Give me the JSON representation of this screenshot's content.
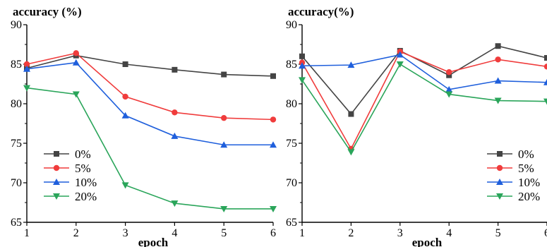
{
  "chart_data": [
    {
      "type": "line",
      "ylabel": "accuracy (%)",
      "xlabel": "epoch",
      "x": [
        1,
        2,
        3,
        4,
        5,
        6
      ],
      "xlim": [
        1,
        6
      ],
      "ylim": [
        65,
        90
      ],
      "xticks": [
        "1",
        "2",
        "3",
        "4",
        "5",
        "6"
      ],
      "yticks": [
        "65",
        "70",
        "75",
        "80",
        "85",
        "90"
      ],
      "legend_position": "bottom-left",
      "grid": false,
      "series": [
        {
          "name": "0%",
          "color": "#444444",
          "marker": "square",
          "values": [
            84.5,
            86.1,
            85.0,
            84.3,
            83.7,
            83.5
          ]
        },
        {
          "name": "5%",
          "color": "#f03c3c",
          "marker": "circle",
          "values": [
            85.0,
            86.4,
            80.9,
            78.9,
            78.2,
            78.0
          ]
        },
        {
          "name": "10%",
          "color": "#1f5fdc",
          "marker": "triangle-up",
          "values": [
            84.4,
            85.2,
            78.5,
            75.9,
            74.8,
            74.8
          ]
        },
        {
          "name": "20%",
          "color": "#2aa55a",
          "marker": "triangle-down",
          "values": [
            82.0,
            81.2,
            69.7,
            67.4,
            66.7,
            66.7
          ]
        }
      ]
    },
    {
      "type": "line",
      "ylabel": "accuracy(%)",
      "xlabel": "epoch",
      "x": [
        1,
        2,
        3,
        4,
        5,
        6
      ],
      "xlim": [
        1,
        6
      ],
      "ylim": [
        65,
        90
      ],
      "xticks": [
        "1",
        "2",
        "3",
        "4",
        "5",
        "6"
      ],
      "yticks": [
        "65",
        "70",
        "75",
        "80",
        "85",
        "90"
      ],
      "legend_position": "bottom-right",
      "grid": false,
      "series": [
        {
          "name": "0%",
          "color": "#444444",
          "marker": "square",
          "values": [
            86.0,
            78.7,
            86.7,
            83.6,
            87.3,
            85.8
          ]
        },
        {
          "name": "5%",
          "color": "#f03c3c",
          "marker": "circle",
          "values": [
            85.2,
            74.3,
            86.6,
            84.0,
            85.6,
            84.7
          ]
        },
        {
          "name": "10%",
          "color": "#1f5fdc",
          "marker": "triangle-up",
          "values": [
            84.8,
            84.9,
            86.2,
            81.8,
            82.9,
            82.7
          ]
        },
        {
          "name": "20%",
          "color": "#2aa55a",
          "marker": "triangle-down",
          "values": [
            83.0,
            73.9,
            85.0,
            81.2,
            80.4,
            80.3
          ]
        }
      ]
    }
  ]
}
